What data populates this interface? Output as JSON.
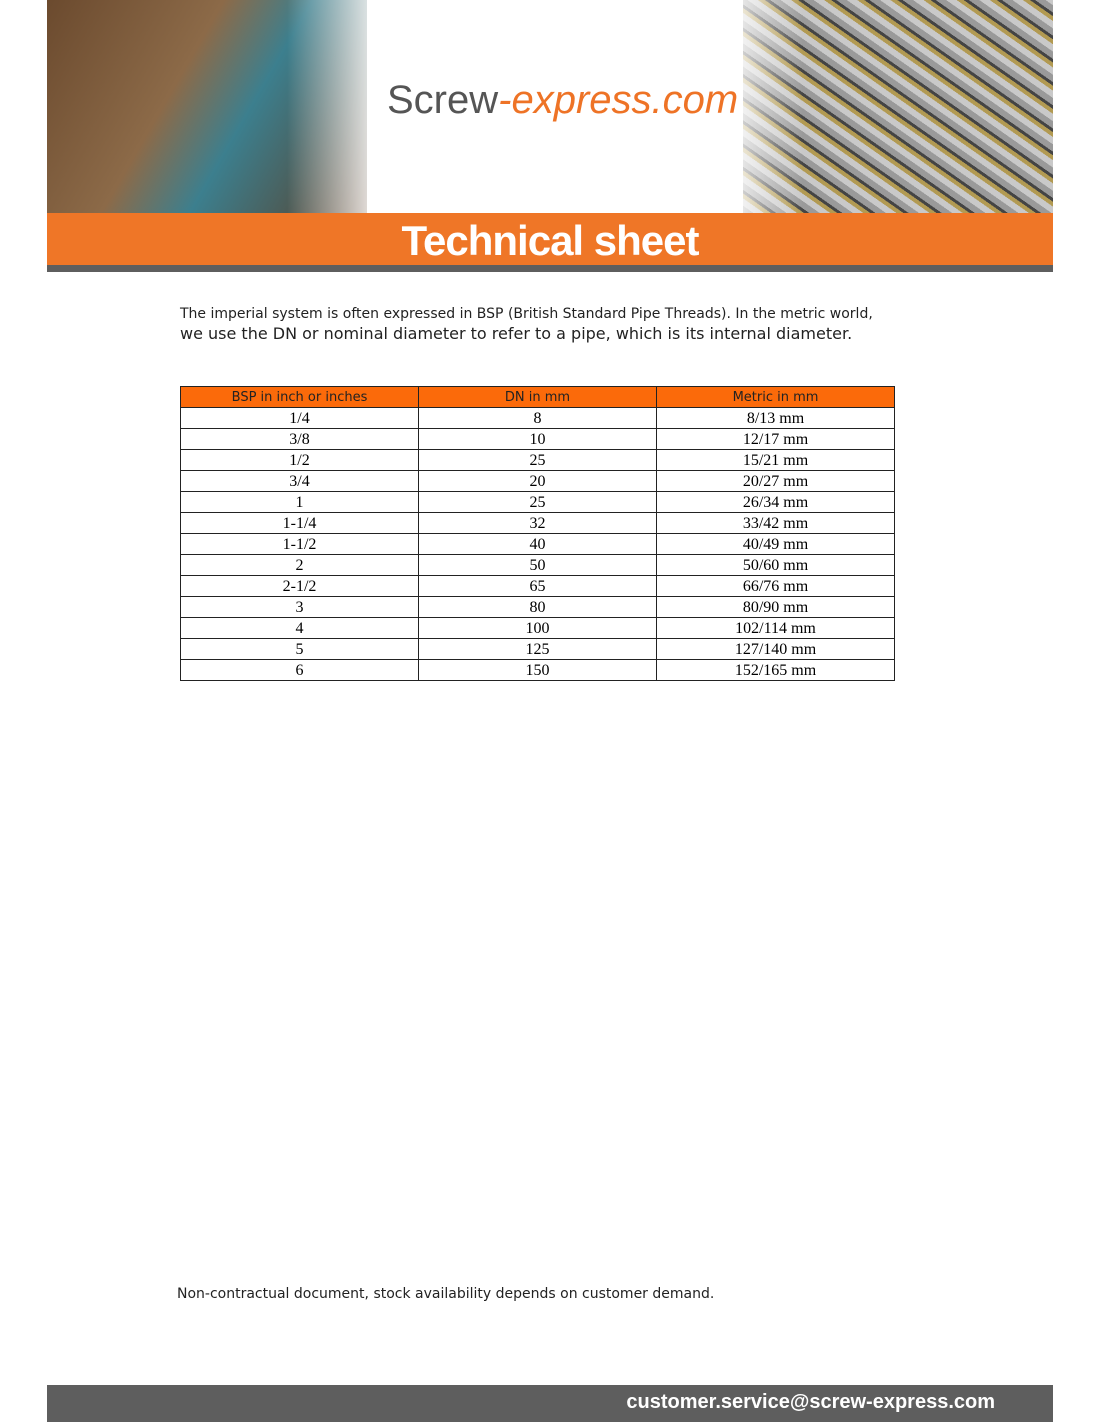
{
  "header": {
    "logo": {
      "primary": "Screw",
      "secondary": "-express.com"
    },
    "title": "Technical sheet"
  },
  "intro": [
    "The imperial system is often expressed in BSP (British Standard Pipe Threads). In the metric world,",
    "we use the DN or nominal diameter to refer to a pipe, which is its internal diameter."
  ],
  "table": {
    "columns": [
      "BSP in inch or inches",
      "DN in mm",
      "Metric in mm"
    ],
    "rows": [
      [
        "1/4",
        "8",
        "8/13 mm"
      ],
      [
        "3/8",
        "10",
        "12/17 mm"
      ],
      [
        "1/2",
        "25",
        "15/21 mm"
      ],
      [
        "3/4",
        "20",
        "20/27 mm"
      ],
      [
        "1",
        "25",
        "26/34 mm"
      ],
      [
        "1-1/4",
        "32",
        "33/42 mm"
      ],
      [
        "1-1/2",
        "40",
        "40/49 mm"
      ],
      [
        "2",
        "50",
        "50/60 mm"
      ],
      [
        "2-1/2",
        "65",
        "66/76 mm"
      ],
      [
        "3",
        "80",
        "80/90 mm"
      ],
      [
        "4",
        "100",
        "102/114 mm"
      ],
      [
        "5",
        "125",
        "127/140 mm"
      ],
      [
        "6",
        "150",
        "152/165 mm"
      ]
    ]
  },
  "note": "Non-contractual document, stock availability depends on customer demand.",
  "footer": {
    "email": "customer.service@screw-express.com"
  }
}
